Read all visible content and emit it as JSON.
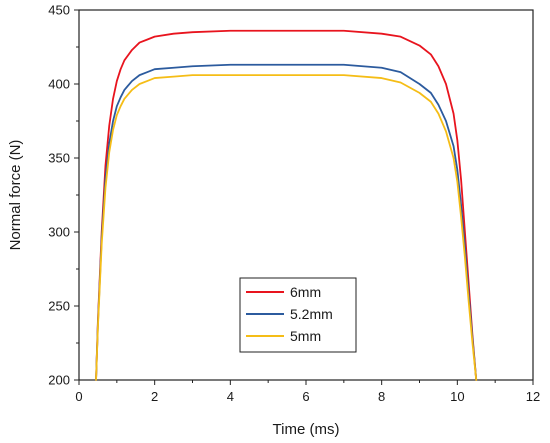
{
  "chart_data": {
    "type": "line",
    "xlabel": "Time (ms)",
    "ylabel": "Normal force (N)",
    "xlim": [
      0,
      12
    ],
    "ylim": [
      200,
      450
    ],
    "xticks": [
      0,
      2,
      4,
      6,
      8,
      10,
      12
    ],
    "yticks": [
      200,
      250,
      300,
      350,
      400,
      450
    ],
    "grid": false,
    "legend_position": "center-bottom",
    "series": [
      {
        "name": "6mm",
        "color": "#e8141e",
        "x": [
          0.45,
          0.5,
          0.6,
          0.7,
          0.8,
          0.9,
          1.0,
          1.1,
          1.2,
          1.4,
          1.6,
          1.8,
          2.0,
          2.5,
          3.0,
          4.0,
          5.0,
          6.0,
          7.0,
          8.0,
          8.5,
          9.0,
          9.3,
          9.5,
          9.7,
          9.9,
          10.0,
          10.1,
          10.2,
          10.3,
          10.4,
          10.5
        ],
        "y": [
          200,
          240,
          300,
          345,
          372,
          390,
          402,
          410,
          416,
          423,
          428,
          430,
          432,
          434,
          435,
          436,
          436,
          436,
          436,
          434,
          432,
          426,
          420,
          412,
          400,
          380,
          362,
          335,
          300,
          265,
          230,
          200
        ]
      },
      {
        "name": "5.2mm",
        "color": "#2c5b9e",
        "x": [
          0.45,
          0.5,
          0.6,
          0.7,
          0.8,
          0.9,
          1.0,
          1.1,
          1.2,
          1.4,
          1.6,
          1.8,
          2.0,
          2.5,
          3.0,
          4.0,
          5.0,
          6.0,
          7.0,
          8.0,
          8.5,
          9.0,
          9.3,
          9.5,
          9.7,
          9.9,
          10.0,
          10.1,
          10.2,
          10.3,
          10.4,
          10.5
        ],
        "y": [
          200,
          238,
          296,
          336,
          360,
          375,
          385,
          391,
          396,
          402,
          406,
          408,
          410,
          411,
          412,
          413,
          413,
          413,
          413,
          411,
          408,
          400,
          394,
          386,
          375,
          358,
          342,
          318,
          290,
          258,
          228,
          200
        ]
      },
      {
        "name": "5mm",
        "color": "#f5bd16",
        "x": [
          0.45,
          0.5,
          0.6,
          0.7,
          0.8,
          0.9,
          1.0,
          1.1,
          1.2,
          1.4,
          1.6,
          1.8,
          2.0,
          2.5,
          3.0,
          4.0,
          5.0,
          6.0,
          7.0,
          8.0,
          8.5,
          9.0,
          9.3,
          9.5,
          9.7,
          9.9,
          10.0,
          10.1,
          10.2,
          10.3,
          10.4,
          10.5
        ],
        "y": [
          200,
          236,
          292,
          330,
          354,
          369,
          379,
          385,
          390,
          396,
          400,
          402,
          404,
          405,
          406,
          406,
          406,
          406,
          406,
          404,
          401,
          394,
          388,
          380,
          368,
          350,
          334,
          310,
          283,
          253,
          225,
          200
        ]
      }
    ]
  }
}
